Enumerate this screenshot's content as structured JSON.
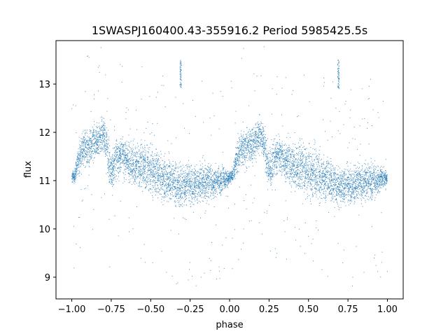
{
  "chart_data": {
    "type": "scatter",
    "title": "1SWASPJ160400.43-355916.2 Period 5985425.5s",
    "xlabel": "phase",
    "ylabel": "flux",
    "xlim": [
      -1.1,
      1.1
    ],
    "ylim": [
      8.55,
      13.9
    ],
    "xticks": [
      -1.0,
      -0.75,
      -0.5,
      -0.25,
      0.0,
      0.25,
      0.5,
      0.75,
      1.0
    ],
    "xtick_labels": [
      "−1.00",
      "−0.75",
      "−0.50",
      "−0.25",
      "0.00",
      "0.25",
      "0.50",
      "0.75",
      "1.00"
    ],
    "yticks": [
      9,
      10,
      11,
      12,
      13
    ],
    "ytick_labels": [
      "9",
      "10",
      "11",
      "12",
      "13"
    ],
    "grid": false,
    "legend": "none",
    "marker_color": "#1f77b4",
    "series": [
      {
        "x": [
          -1.0,
          -0.98,
          -0.96,
          -0.94,
          -0.92,
          -0.9,
          -0.88,
          -0.86,
          -0.84,
          -0.82,
          -0.8,
          -0.78,
          -0.76,
          -0.74,
          -0.72,
          -0.7,
          -0.68,
          -0.66,
          -0.64,
          -0.62,
          -0.6,
          -0.58,
          -0.56,
          -0.54,
          -0.52,
          -0.5,
          -0.48,
          -0.46,
          -0.44,
          -0.42,
          -0.4,
          -0.38,
          -0.36,
          -0.34,
          -0.32,
          -0.3,
          -0.28,
          -0.26,
          -0.24,
          -0.22,
          -0.2,
          -0.18,
          -0.16,
          -0.14,
          -0.12,
          -0.1,
          -0.08,
          -0.06,
          -0.04,
          -0.02,
          0.0,
          0.02,
          0.04,
          0.06,
          0.08,
          0.1,
          0.12,
          0.14,
          0.16,
          0.18,
          0.2,
          0.22,
          0.24,
          0.26,
          0.28,
          0.3,
          0.32,
          0.34,
          0.36,
          0.38,
          0.4,
          0.42,
          0.44,
          0.46,
          0.48,
          0.5,
          0.52,
          0.54,
          0.56,
          0.58,
          0.6,
          0.62,
          0.64,
          0.66,
          0.68,
          0.7,
          0.72,
          0.74,
          0.76,
          0.78,
          0.8,
          0.82,
          0.84,
          0.86,
          0.88,
          0.9,
          0.92,
          0.94,
          0.96,
          0.98,
          1.0
        ],
        "y": [
          11.05,
          11.1,
          11.4,
          11.6,
          11.7,
          11.65,
          11.7,
          11.75,
          11.8,
          11.9,
          11.95,
          11.8,
          11.3,
          11.2,
          11.45,
          11.5,
          11.55,
          11.45,
          11.4,
          11.35,
          11.3,
          11.25,
          11.3,
          11.3,
          11.25,
          11.2,
          11.2,
          11.15,
          11.1,
          11.05,
          11.0,
          11.0,
          11.0,
          10.95,
          10.9,
          10.85,
          10.9,
          10.95,
          10.9,
          10.9,
          10.95,
          11.0,
          10.95,
          10.95,
          11.0,
          10.95,
          11.0,
          11.0,
          11.05,
          11.05,
          11.05,
          11.1,
          11.4,
          11.6,
          11.7,
          11.65,
          11.7,
          11.75,
          11.8,
          11.9,
          11.95,
          11.8,
          11.3,
          11.2,
          11.45,
          11.5,
          11.55,
          11.45,
          11.4,
          11.35,
          11.3,
          11.25,
          11.3,
          11.3,
          11.25,
          11.2,
          11.2,
          11.15,
          11.1,
          11.05,
          11.0,
          11.0,
          11.0,
          10.95,
          10.9,
          10.85,
          10.9,
          10.95,
          10.9,
          10.9,
          10.95,
          11.0,
          10.95,
          10.95,
          11.0,
          10.95,
          11.0,
          11.0,
          11.05,
          11.05,
          11.05
        ],
        "y_spread": [
          0.12,
          0.15,
          0.3,
          0.35,
          0.4,
          0.4,
          0.4,
          0.4,
          0.35,
          0.4,
          0.35,
          0.4,
          0.45,
          0.45,
          0.4,
          0.35,
          0.35,
          0.4,
          0.4,
          0.45,
          0.45,
          0.45,
          0.5,
          0.5,
          0.5,
          0.55,
          0.5,
          0.5,
          0.5,
          0.5,
          0.45,
          0.45,
          0.45,
          0.45,
          0.4,
          0.4,
          0.4,
          0.4,
          0.4,
          0.4,
          0.4,
          0.4,
          0.4,
          0.4,
          0.4,
          0.4,
          0.35,
          0.3,
          0.25,
          0.2,
          0.12,
          0.15,
          0.3,
          0.35,
          0.4,
          0.4,
          0.4,
          0.4,
          0.35,
          0.4,
          0.35,
          0.4,
          0.45,
          0.45,
          0.4,
          0.35,
          0.35,
          0.4,
          0.4,
          0.45,
          0.45,
          0.45,
          0.5,
          0.5,
          0.5,
          0.55,
          0.5,
          0.5,
          0.5,
          0.5,
          0.45,
          0.45,
          0.45,
          0.45,
          0.4,
          0.4,
          0.4,
          0.4,
          0.4,
          0.4,
          0.4,
          0.4,
          0.4,
          0.4,
          0.4,
          0.4,
          0.35,
          0.3,
          0.25,
          0.2,
          0.12
        ]
      }
    ],
    "annotations": [
      {
        "x": -0.31,
        "y_from": 12.9,
        "y_to": 13.5,
        "kind": "vertical cluster"
      },
      {
        "x": 0.69,
        "y_from": 12.9,
        "y_to": 13.5,
        "kind": "vertical cluster"
      }
    ]
  }
}
